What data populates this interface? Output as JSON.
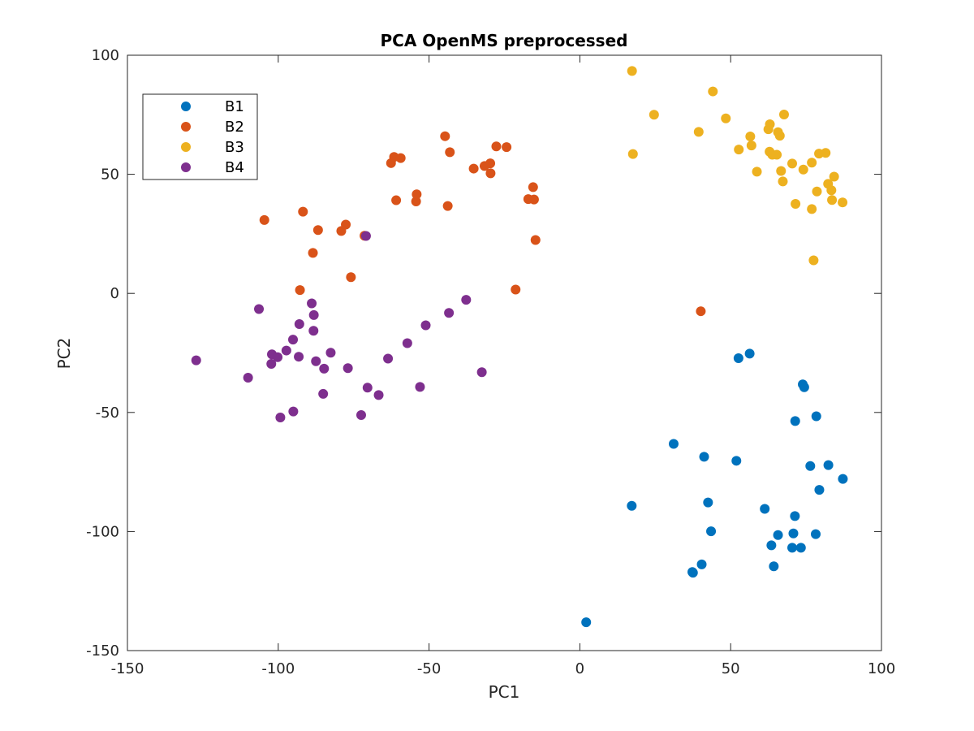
{
  "chart_data": {
    "type": "scatter",
    "title": "PCA OpenMS preprocessed",
    "xlabel": "PC1",
    "ylabel": "PC2",
    "xlim": [
      -150,
      100
    ],
    "ylim": [
      -150,
      100
    ],
    "xticks": [
      -150,
      -100,
      -50,
      0,
      50,
      100
    ],
    "yticks": [
      -150,
      -100,
      -50,
      0,
      50,
      100
    ],
    "xtick_labels": [
      "-150",
      "-100",
      "-50",
      "0",
      "50",
      "100"
    ],
    "ytick_labels": [
      "-150",
      "-100",
      "-50",
      "0",
      "50",
      "100"
    ],
    "grid": false,
    "box": true,
    "legend_position": "top-left",
    "series": [
      {
        "name": "B1",
        "color": "#0072BD",
        "points": [
          [
            2.1,
            -138.1
          ],
          [
            17.2,
            -89.2
          ],
          [
            31.1,
            -63.2
          ],
          [
            37.3,
            -117.0
          ],
          [
            37.5,
            -117.3
          ],
          [
            40.4,
            -113.8
          ],
          [
            41.2,
            -68.6
          ],
          [
            42.5,
            -87.8
          ],
          [
            43.5,
            -99.9
          ],
          [
            51.9,
            -70.3
          ],
          [
            52.6,
            -27.2
          ],
          [
            56.3,
            -25.3
          ],
          [
            61.3,
            -90.5
          ],
          [
            63.5,
            -105.8
          ],
          [
            64.3,
            -114.6
          ],
          [
            65.7,
            -101.5
          ],
          [
            70.4,
            -106.8
          ],
          [
            70.8,
            -100.8
          ],
          [
            71.4,
            -53.6
          ],
          [
            71.3,
            -93.5
          ],
          [
            73.3,
            -106.8
          ],
          [
            73.9,
            -38.2
          ],
          [
            74.4,
            -39.4
          ],
          [
            76.4,
            -72.5
          ],
          [
            78.2,
            -101.1
          ],
          [
            78.4,
            -51.6
          ],
          [
            79.4,
            -82.5
          ],
          [
            82.4,
            -72.1
          ],
          [
            87.2,
            -77.9
          ]
        ]
      },
      {
        "name": "B2",
        "color": "#D95319",
        "points": [
          [
            -104.6,
            30.8
          ],
          [
            -92.8,
            1.4
          ],
          [
            -91.8,
            34.3
          ],
          [
            -88.5,
            17.0
          ],
          [
            -86.8,
            26.6
          ],
          [
            -79.1,
            26.2
          ],
          [
            -77.6,
            28.9
          ],
          [
            -75.9,
            6.8
          ],
          [
            -71.4,
            24.2
          ],
          [
            -62.6,
            54.7
          ],
          [
            -61.6,
            57.3
          ],
          [
            -60.9,
            39.1
          ],
          [
            -59.4,
            56.8
          ],
          [
            -54.3,
            38.6
          ],
          [
            -54.1,
            41.6
          ],
          [
            -44.7,
            66.0
          ],
          [
            -43.8,
            36.7
          ],
          [
            -43.1,
            59.3
          ],
          [
            -35.2,
            52.4
          ],
          [
            -31.6,
            53.5
          ],
          [
            -29.7,
            54.6
          ],
          [
            -29.6,
            50.4
          ],
          [
            -27.7,
            61.7
          ],
          [
            -24.3,
            61.4
          ],
          [
            -21.3,
            1.6
          ],
          [
            -17.1,
            39.6
          ],
          [
            -15.5,
            44.6
          ],
          [
            -15.2,
            39.4
          ],
          [
            -14.7,
            22.4
          ],
          [
            40.1,
            -7.5
          ]
        ]
      },
      {
        "name": "B3",
        "color": "#EDB120",
        "points": [
          [
            17.3,
            93.4
          ],
          [
            17.6,
            58.5
          ],
          [
            24.6,
            75.0
          ],
          [
            39.4,
            67.8
          ],
          [
            44.1,
            84.8
          ],
          [
            48.4,
            73.5
          ],
          [
            52.7,
            60.4
          ],
          [
            56.5,
            65.9
          ],
          [
            56.9,
            62.1
          ],
          [
            58.7,
            51.1
          ],
          [
            62.5,
            68.9
          ],
          [
            62.9,
            59.5
          ],
          [
            63.0,
            71.0
          ],
          [
            63.8,
            58.2
          ],
          [
            65.3,
            58.2
          ],
          [
            65.7,
            67.7
          ],
          [
            66.3,
            66.2
          ],
          [
            66.7,
            51.4
          ],
          [
            67.3,
            47.0
          ],
          [
            67.7,
            75.1
          ],
          [
            70.4,
            54.5
          ],
          [
            71.5,
            37.6
          ],
          [
            74.1,
            52.0
          ],
          [
            76.9,
            54.9
          ],
          [
            76.9,
            35.4
          ],
          [
            77.5,
            13.9
          ],
          [
            78.6,
            42.8
          ],
          [
            79.3,
            58.7
          ],
          [
            81.5,
            59.0
          ],
          [
            82.3,
            46.0
          ],
          [
            83.4,
            43.3
          ],
          [
            83.6,
            39.2
          ],
          [
            84.3,
            49.0
          ],
          [
            87.1,
            38.2
          ]
        ]
      },
      {
        "name": "B4",
        "color": "#7E2F8E",
        "points": [
          [
            -127.2,
            -28.1
          ],
          [
            -110.0,
            -35.4
          ],
          [
            -106.4,
            -6.6
          ],
          [
            -102.3,
            -29.6
          ],
          [
            -102.1,
            -25.6
          ],
          [
            -100.2,
            -26.8
          ],
          [
            -99.3,
            -52.1
          ],
          [
            -97.3,
            -24.0
          ],
          [
            -95.1,
            -19.4
          ],
          [
            -95.0,
            -49.6
          ],
          [
            -93.2,
            -26.6
          ],
          [
            -93.0,
            -12.9
          ],
          [
            -88.9,
            -4.2
          ],
          [
            -88.3,
            -15.7
          ],
          [
            -88.2,
            -9.1
          ],
          [
            -87.5,
            -28.5
          ],
          [
            -85.1,
            -42.2
          ],
          [
            -84.8,
            -31.6
          ],
          [
            -82.6,
            -24.9
          ],
          [
            -76.9,
            -31.4
          ],
          [
            -72.5,
            -51.1
          ],
          [
            -70.9,
            24.1
          ],
          [
            -70.4,
            -39.6
          ],
          [
            -66.7,
            -42.7
          ],
          [
            -63.6,
            -27.4
          ],
          [
            -57.2,
            -20.9
          ],
          [
            -53.0,
            -39.3
          ],
          [
            -51.1,
            -13.4
          ],
          [
            -43.4,
            -8.2
          ],
          [
            -37.7,
            -2.7
          ],
          [
            -32.5,
            -33.1
          ]
        ]
      }
    ]
  }
}
